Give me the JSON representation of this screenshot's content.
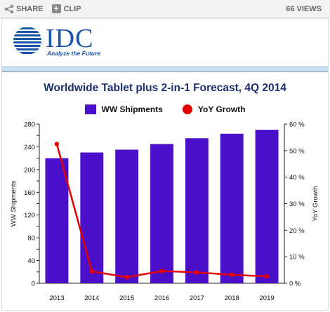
{
  "toolbar": {
    "share_label": "SHARE",
    "clip_label": "CLIP",
    "views_label": "66 VIEWS",
    "share_icon": "share-icon",
    "clip_icon": "plus-icon"
  },
  "logo": {
    "text": "IDC",
    "tagline": "Analyze the Future",
    "color": "#1a57a8"
  },
  "chart_data": {
    "type": "bar",
    "title": "Worldwide Tablet plus 2-in-1 Forecast, 4Q 2014",
    "categories": [
      "2013",
      "2014",
      "2015",
      "2016",
      "2017",
      "2018",
      "2019"
    ],
    "series": [
      {
        "name": "WW Shipments",
        "type": "bar",
        "axis": "left",
        "color": "#4a0fc9",
        "values": [
          220,
          230,
          235,
          245,
          255,
          263,
          270
        ]
      },
      {
        "name": "YoY Growth",
        "type": "line",
        "axis": "right",
        "color": "#e40000",
        "values": [
          52.5,
          4.5,
          2.3,
          4.6,
          4.1,
          3.2,
          2.6
        ]
      }
    ],
    "ylabel": "WW Shipments",
    "ylim": [
      0,
      280
    ],
    "yticks": [
      "0",
      "20",
      "40",
      "60",
      "80",
      "100",
      "120",
      "140",
      "160",
      "180",
      "200",
      "220",
      "240",
      "260",
      "280"
    ],
    "y2label": "YoY Growth",
    "y2lim": [
      0,
      60
    ],
    "y2ticks": [
      "0 %",
      "10 %",
      "20 %",
      "30 %",
      "40 %",
      "50 %",
      "60 %"
    ],
    "legend": "top-center",
    "grid": false
  }
}
